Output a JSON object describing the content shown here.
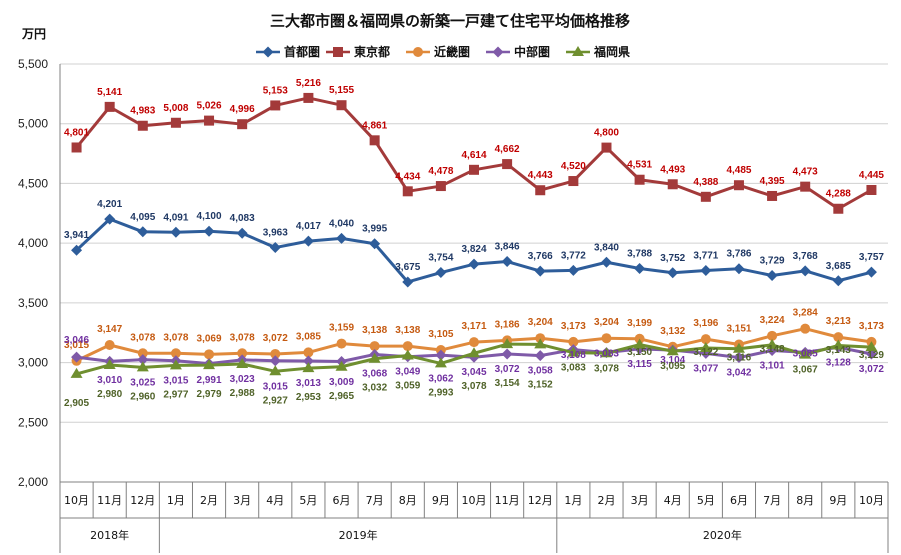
{
  "chart_data": {
    "type": "line",
    "title": "三大都市圏＆福岡県の新築一戸建て住宅平均価格推移",
    "ylabel": "万円",
    "ylim": [
      2000,
      5500
    ],
    "yticks": [
      "2,000",
      "2,500",
      "3,000",
      "3,500",
      "4,000",
      "4,500",
      "5,000",
      "5,500"
    ],
    "ytick_values": [
      2000,
      2500,
      3000,
      3500,
      4000,
      4500,
      5000,
      5500
    ],
    "grid": true,
    "legend_position": "top-center",
    "categories": [
      "10月",
      "11月",
      "12月",
      "1月",
      "2月",
      "3月",
      "4月",
      "5月",
      "6月",
      "7月",
      "8月",
      "9月",
      "10月",
      "11月",
      "12月",
      "1月",
      "2月",
      "3月",
      "4月",
      "5月",
      "6月",
      "7月",
      "8月",
      "9月",
      "10月"
    ],
    "years": [
      {
        "label": "2018年",
        "start": 0,
        "end": 2
      },
      {
        "label": "2019年",
        "start": 3,
        "end": 14
      },
      {
        "label": "2020年",
        "start": 15,
        "end": 24
      }
    ],
    "series": [
      {
        "name": "首都圏",
        "color": "#2e5d9a",
        "marker": "diamond",
        "values": [
          3941,
          4201,
          4095,
          4091,
          4100,
          4083,
          3963,
          4017,
          4040,
          3995,
          3675,
          3754,
          3824,
          3846,
          3766,
          3772,
          3840,
          3788,
          3752,
          3771,
          3786,
          3729,
          3768,
          3685,
          3757
        ],
        "labels": [
          "3,941",
          "4,201",
          "4,095",
          "4,091",
          "4,100",
          "4,083",
          "3,963",
          "4,017",
          "4,040",
          "3,995",
          "3,675",
          "3,754",
          "3,824",
          "3,846",
          "3,766",
          "3,772",
          "3,840",
          "3,788",
          "3,752",
          "3,771",
          "3,786",
          "3,729",
          "3,768",
          "3,685",
          "3,757"
        ],
        "label_color": "#1f3864"
      },
      {
        "name": "東京都",
        "color": "#a33a3a",
        "marker": "square",
        "values": [
          4801,
          5141,
          4983,
          5008,
          5026,
          4996,
          5153,
          5216,
          5155,
          4861,
          4434,
          4478,
          4614,
          4662,
          4443,
          4520,
          4800,
          4531,
          4493,
          4388,
          4485,
          4395,
          4473,
          4288,
          4445
        ],
        "labels": [
          "4,801",
          "5,141",
          "4,983",
          "5,008",
          "5,026",
          "4,996",
          "5,153",
          "5,216",
          "5,155",
          "4,861",
          "4,434",
          "4,478",
          "4,614",
          "4,662",
          "4,443",
          "4,520",
          "4,800",
          "4,531",
          "4,493",
          "4,388",
          "4,485",
          "4,395",
          "4,473",
          "4,288",
          "4,445"
        ],
        "label_color": "#c00000"
      },
      {
        "name": "近畿圏",
        "color": "#e08a3c",
        "marker": "circle",
        "values": [
          3015,
          3147,
          3078,
          3078,
          3069,
          3078,
          3072,
          3085,
          3159,
          3138,
          3138,
          3105,
          3171,
          3186,
          3204,
          3173,
          3204,
          3199,
          3132,
          3196,
          3151,
          3224,
          3284,
          3213,
          3173
        ],
        "labels": [
          "3,015",
          "3,147",
          "3,078",
          "3,078",
          "3,069",
          "3,078",
          "3,072",
          "3,085",
          "3,159",
          "3,138",
          "3,138",
          "3,105",
          "3,171",
          "3,186",
          "3,204",
          "3,173",
          "3,204",
          "3,199",
          "3,132",
          "3,196",
          "3,151",
          "3,224",
          "3,284",
          "3,213",
          "3,173"
        ],
        "label_color": "#c55a11"
      },
      {
        "name": "中部圏",
        "color": "#7f5aa8",
        "marker": "diamond",
        "values": [
          3046,
          3010,
          3025,
          3015,
          2991,
          3023,
          3015,
          3013,
          3009,
          3068,
          3049,
          3062,
          3045,
          3072,
          3058,
          3108,
          3083,
          3115,
          3104,
          3077,
          3042,
          3101,
          3085,
          3128,
          3072
        ],
        "labels": [
          "3,046",
          "3,010",
          "3,025",
          "3,015",
          "2,991",
          "3,023",
          "3,015",
          "3,013",
          "3,009",
          "3,068",
          "3,049",
          "3,062",
          "3,045",
          "3,072",
          "3,058",
          "3,108",
          "3,083",
          "3,115",
          "3,104",
          "3,077",
          "3,042",
          "3,101",
          "3,085",
          "3,128",
          "3,072"
        ],
        "label_color": "#7030a0"
      },
      {
        "name": "福岡県",
        "color": "#6f8f2f",
        "marker": "triangle",
        "values": [
          2905,
          2980,
          2960,
          2977,
          2979,
          2988,
          2927,
          2953,
          2965,
          3032,
          3059,
          2993,
          3078,
          3154,
          3152,
          3083,
          3078,
          3150,
          3095,
          3122,
          3116,
          3148,
          3067,
          3143,
          3129
        ],
        "labels": [
          "2,905",
          "2,980",
          "2,960",
          "2,977",
          "2,979",
          "2,988",
          "2,927",
          "2,953",
          "2,965",
          "3,032",
          "3,059",
          "2,993",
          "3,078",
          "3,154",
          "3,152",
          "3,083",
          "3,078",
          "3,150",
          "3,095",
          "3,122",
          "3,116",
          "3,148",
          "3,067",
          "3,143",
          "3,129"
        ],
        "label_color": "#4f6228"
      }
    ]
  }
}
